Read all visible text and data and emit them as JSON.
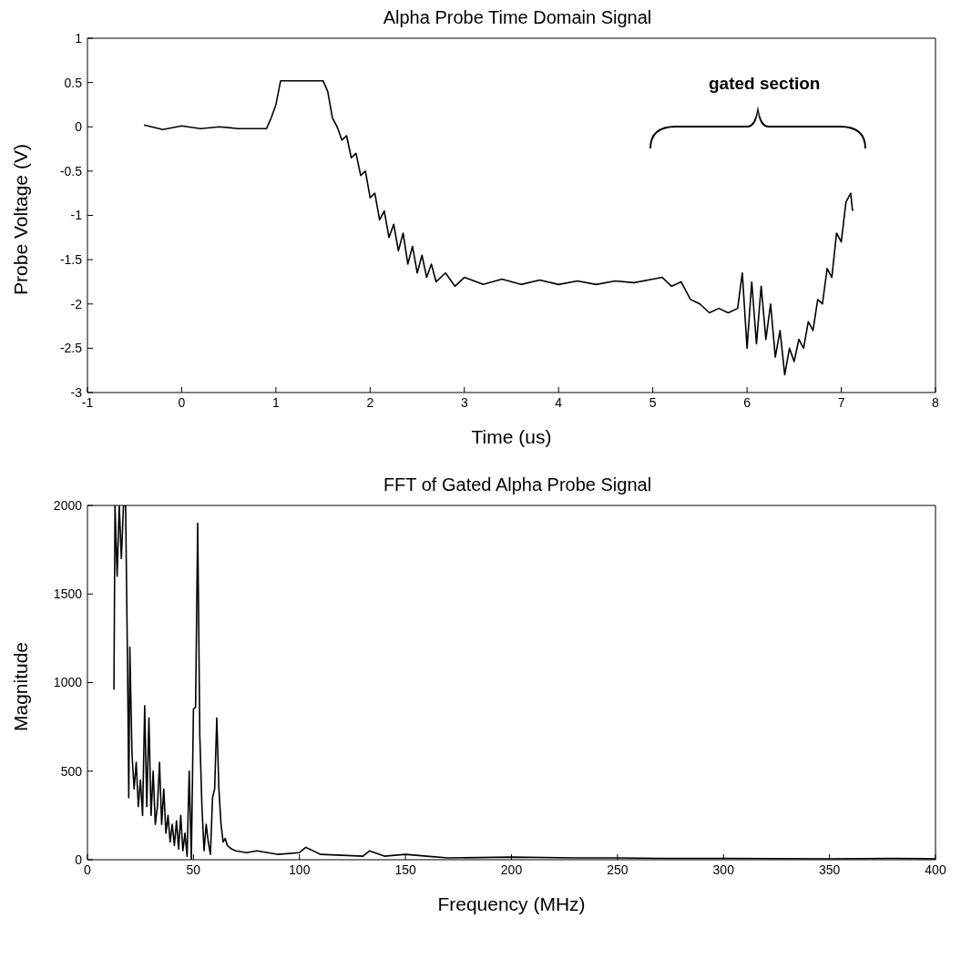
{
  "chart_data": [
    {
      "type": "line",
      "title": "Alpha Probe Time Domain Signal",
      "xlabel": "Time (us)",
      "ylabel": "Probe Voltage (V)",
      "annotations": [
        "gated section"
      ],
      "xlim": [
        -1,
        8
      ],
      "xticks": [
        -1,
        0,
        1,
        2,
        3,
        4,
        5,
        6,
        7,
        8
      ],
      "ylim": [
        -3,
        1
      ],
      "yticks": [
        -3,
        -2.5,
        -2,
        -1.5,
        -1,
        -0.5,
        0,
        0.5,
        1
      ],
      "marker": "none",
      "line_style": "solid",
      "series": [
        {
          "color": "#000000",
          "x": [
            -0.4,
            -0.2,
            0,
            0.2,
            0.4,
            0.6,
            0.9,
            0.95,
            1.0,
            1.05,
            1.5,
            1.55,
            1.6,
            1.65,
            1.7,
            1.75,
            1.8,
            1.85,
            1.9,
            1.95,
            2.0,
            2.05,
            2.1,
            2.15,
            2.2,
            2.25,
            2.3,
            2.35,
            2.4,
            2.45,
            2.5,
            2.55,
            2.6,
            2.65,
            2.7,
            2.8,
            2.9,
            3.0,
            3.2,
            3.4,
            3.6,
            3.8,
            4.0,
            4.2,
            4.4,
            4.6,
            4.8,
            5.0,
            5.1,
            5.2,
            5.3,
            5.4,
            5.5,
            5.6,
            5.7,
            5.8,
            5.9,
            5.95,
            6.0,
            6.05,
            6.1,
            6.15,
            6.2,
            6.25,
            6.3,
            6.35,
            6.4,
            6.45,
            6.5,
            6.55,
            6.6,
            6.65,
            6.7,
            6.75,
            6.8,
            6.85,
            6.9,
            6.95,
            7.0,
            7.05,
            7.1,
            7.12
          ],
          "values": [
            0.02,
            -0.03,
            0.01,
            -0.02,
            0.0,
            -0.02,
            -0.02,
            0.1,
            0.25,
            0.52,
            0.52,
            0.4,
            0.1,
            0.0,
            -0.15,
            -0.1,
            -0.35,
            -0.3,
            -0.55,
            -0.5,
            -0.8,
            -0.75,
            -1.05,
            -0.95,
            -1.25,
            -1.1,
            -1.4,
            -1.2,
            -1.55,
            -1.35,
            -1.65,
            -1.45,
            -1.7,
            -1.55,
            -1.75,
            -1.65,
            -1.8,
            -1.7,
            -1.78,
            -1.72,
            -1.78,
            -1.73,
            -1.78,
            -1.74,
            -1.78,
            -1.74,
            -1.76,
            -1.72,
            -1.7,
            -1.8,
            -1.75,
            -1.95,
            -2.0,
            -2.1,
            -2.05,
            -2.1,
            -2.05,
            -1.65,
            -2.5,
            -1.75,
            -2.45,
            -1.8,
            -2.4,
            -2.0,
            -2.6,
            -2.3,
            -2.8,
            -2.5,
            -2.65,
            -2.4,
            -2.5,
            -2.2,
            -2.3,
            -1.95,
            -2.0,
            -1.6,
            -1.7,
            -1.2,
            -1.3,
            -0.85,
            -0.75,
            -0.95
          ]
        }
      ]
    },
    {
      "type": "line",
      "title": "FFT of Gated Alpha Probe Signal",
      "xlabel": "Frequency (MHz)",
      "ylabel": "Magnitude",
      "xlim": [
        0,
        400
      ],
      "xticks": [
        0,
        50,
        100,
        150,
        200,
        250,
        300,
        350,
        400
      ],
      "ylim": [
        0,
        2000
      ],
      "yticks": [
        0,
        500,
        1000,
        1500,
        2000
      ],
      "marker": "none",
      "line_style": "solid",
      "series": [
        {
          "color": "#000000",
          "x": [
            12.5,
            13,
            14,
            15,
            16,
            17,
            18,
            19,
            19.5,
            20,
            21,
            22,
            23,
            24,
            25,
            26,
            27,
            28,
            29,
            30,
            31,
            32,
            33,
            34,
            35,
            36,
            37,
            38,
            39,
            40,
            41,
            42,
            43,
            44,
            45,
            46,
            47,
            48,
            49,
            50,
            51,
            52,
            53,
            54,
            55,
            56,
            57,
            58,
            59,
            60,
            61,
            62,
            63,
            64,
            65,
            66,
            68,
            70,
            75,
            80,
            90,
            100,
            103,
            110,
            120,
            130,
            133,
            140,
            150,
            160,
            170,
            200,
            230,
            250,
            270,
            300,
            350,
            380,
            400
          ],
          "values": [
            960,
            2000,
            1600,
            2000,
            1700,
            2000,
            2000,
            1000,
            350,
            1200,
            600,
            400,
            550,
            300,
            450,
            250,
            870,
            300,
            800,
            250,
            500,
            200,
            300,
            550,
            200,
            400,
            150,
            250,
            100,
            200,
            80,
            220,
            60,
            250,
            50,
            150,
            20,
            500,
            0,
            850,
            860,
            1900,
            700,
            300,
            50,
            200,
            100,
            30,
            350,
            400,
            800,
            400,
            200,
            100,
            120,
            80,
            60,
            50,
            40,
            50,
            30,
            40,
            70,
            30,
            25,
            20,
            50,
            20,
            30,
            20,
            10,
            15,
            10,
            10,
            8,
            8,
            5,
            8,
            5
          ]
        }
      ]
    }
  ]
}
